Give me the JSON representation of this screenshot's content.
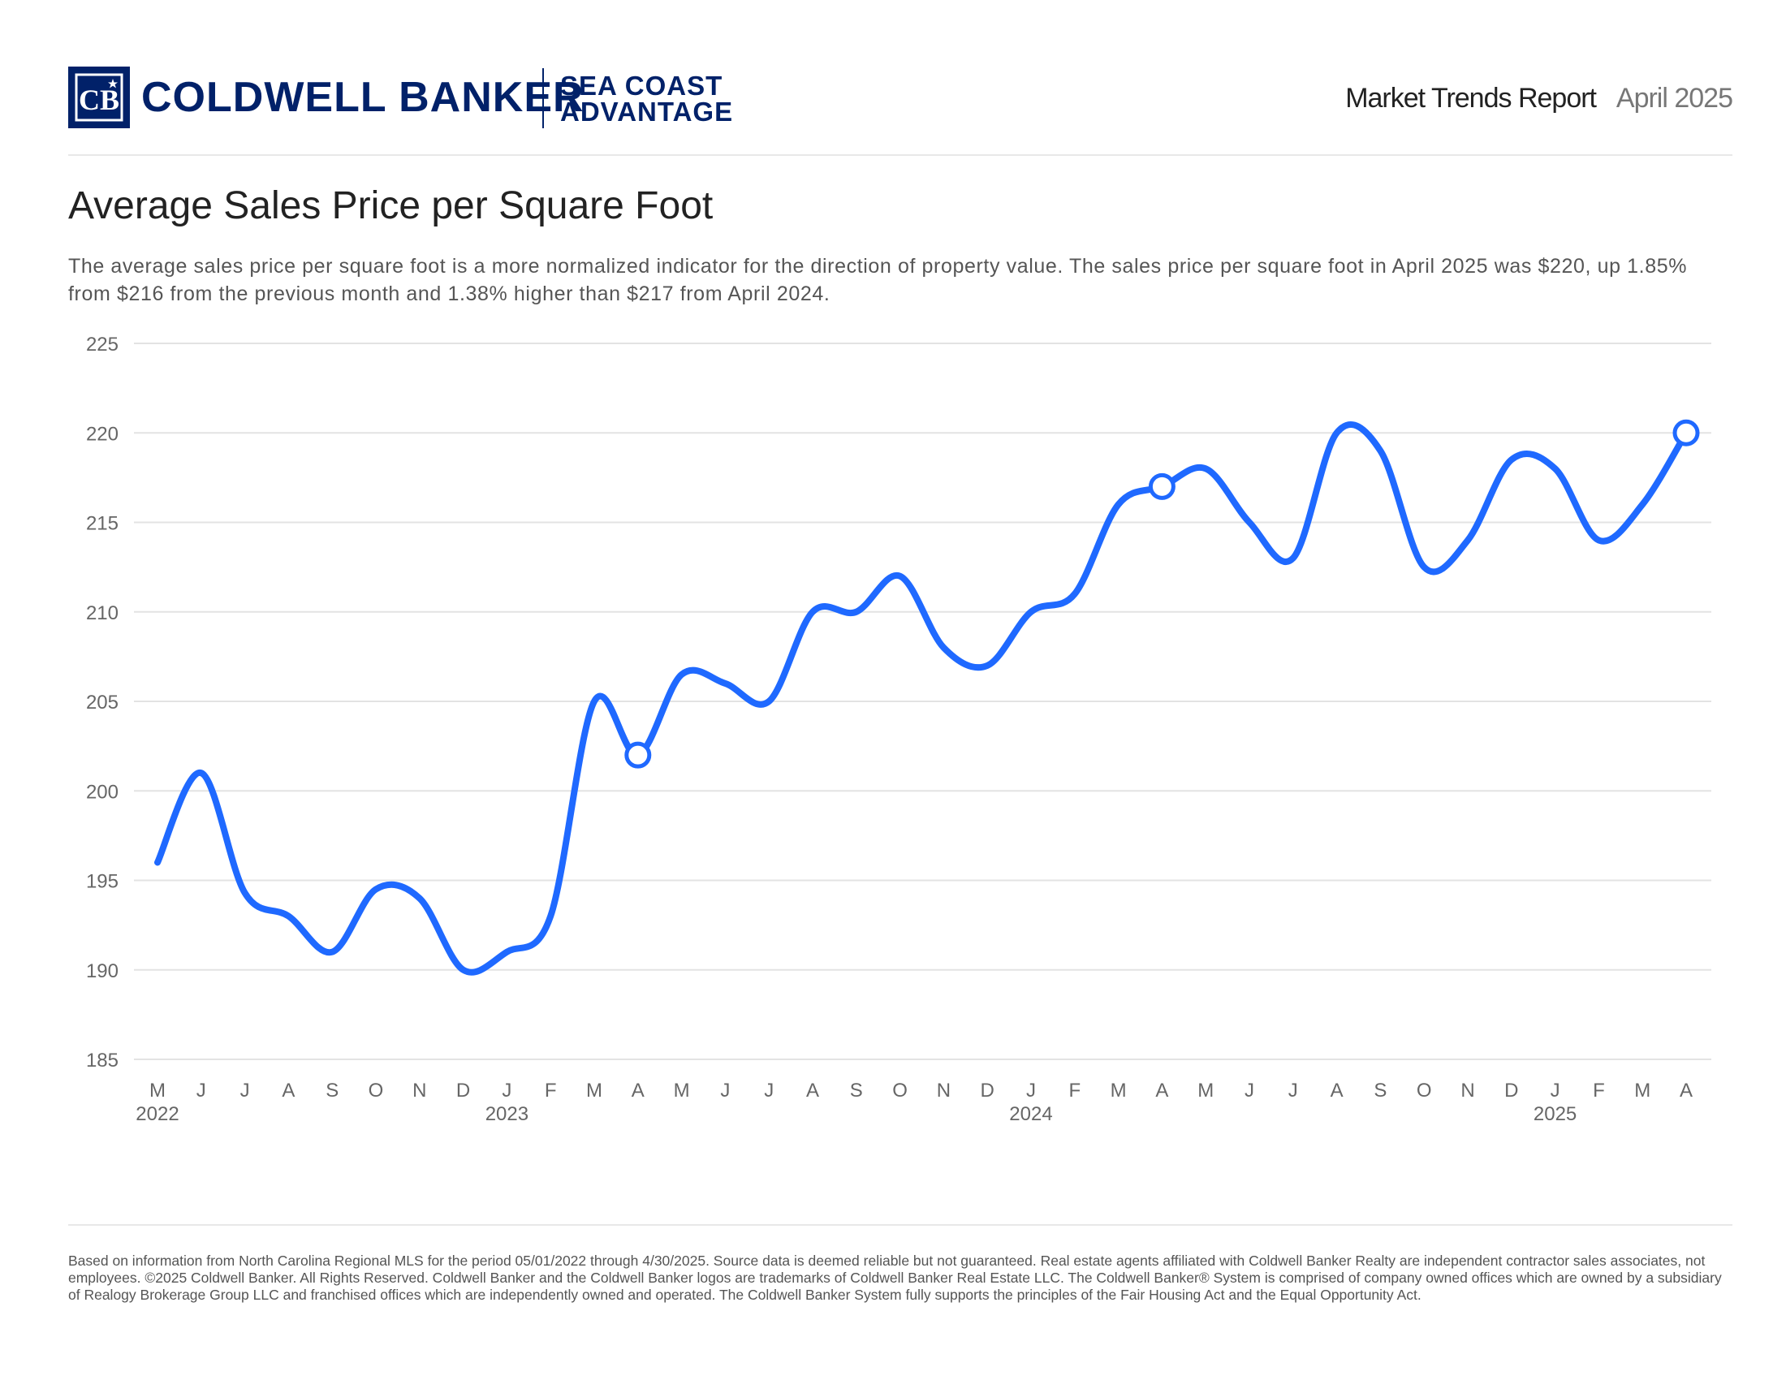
{
  "header": {
    "brand_name": "COLDWELL BANKER",
    "sub_brand_line1": "SEA COAST",
    "sub_brand_line2": "ADVANTAGE",
    "logo_monogram": "CB",
    "report_title": "Market Trends Report",
    "report_date": "April 2025"
  },
  "page": {
    "title": "Average Sales Price per Square Foot",
    "description": "The average sales price per square foot is a more normalized indicator for the direction of property value. The sales price per square foot in April 2025 was $220, up 1.85% from $216 from the previous month and 1.38% higher than $217 from April 2024."
  },
  "chart_data": {
    "type": "line",
    "title": "",
    "xlabel": "",
    "ylabel": "",
    "ylim": [
      185,
      225
    ],
    "yticks": [
      185,
      190,
      195,
      200,
      205,
      210,
      215,
      220,
      225
    ],
    "grid": true,
    "line_color": "#1f69ff",
    "categories": [
      "M",
      "J",
      "J",
      "A",
      "S",
      "O",
      "N",
      "D",
      "J",
      "F",
      "M",
      "A",
      "M",
      "J",
      "J",
      "A",
      "S",
      "O",
      "N",
      "D",
      "J",
      "F",
      "M",
      "A",
      "M",
      "J",
      "J",
      "A",
      "S",
      "O",
      "N",
      "D",
      "J",
      "F",
      "M",
      "A"
    ],
    "year_labels": [
      {
        "index": 0,
        "label": "2022"
      },
      {
        "index": 8,
        "label": "2023"
      },
      {
        "index": 20,
        "label": "2024"
      },
      {
        "index": 32,
        "label": "2025"
      }
    ],
    "series": [
      {
        "values": [
          196,
          201,
          194.3,
          193,
          191,
          194.5,
          194,
          190,
          191,
          193,
          205,
          202,
          206.5,
          206,
          205,
          210,
          210,
          212,
          208,
          207,
          210,
          211,
          216,
          217,
          218,
          215,
          213,
          220,
          219,
          212.5,
          214,
          218.5,
          218,
          214,
          216,
          220
        ],
        "markers": [
          11,
          23,
          35
        ]
      }
    ]
  },
  "footer": {
    "disclaimer": "Based on information from North Carolina Regional MLS for the period 05/01/2022 through 4/30/2025. Source data is deemed reliable but not guaranteed. Real estate agents affiliated with Coldwell Banker Realty are independent contractor sales associates, not employees. ©2025 Coldwell Banker. All Rights Reserved. Coldwell Banker and the Coldwell Banker logos are trademarks of Coldwell Banker Real Estate LLC. The Coldwell Banker® System is comprised of company owned offices which are owned by a subsidiary of Realogy Brokerage Group LLC and franchised offices which are independently owned and operated. The Coldwell Banker System fully supports the principles of the Fair Housing Act and the Equal Opportunity Act."
  }
}
